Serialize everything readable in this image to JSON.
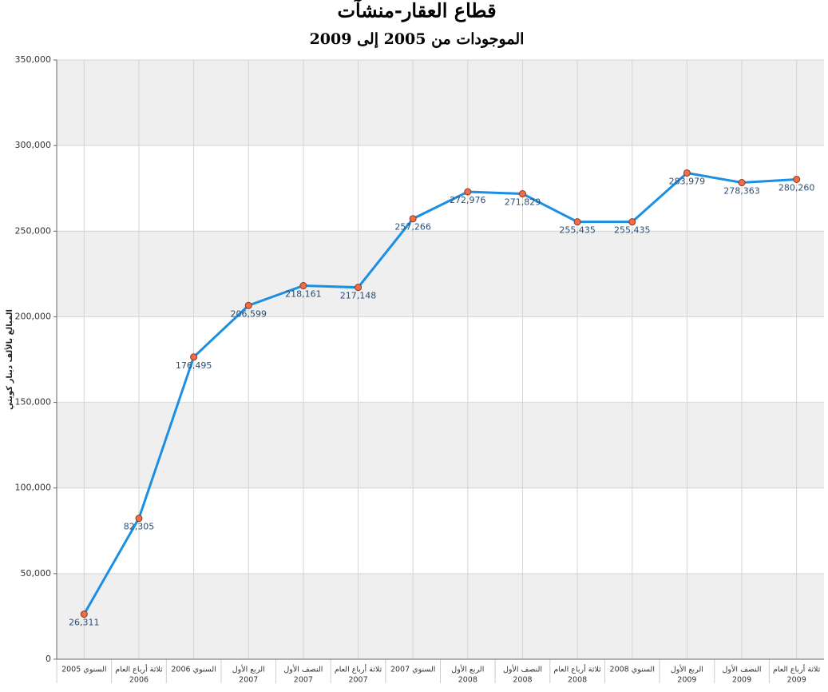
{
  "chart_data": {
    "type": "line",
    "title": "قطاع العقار-منشآت",
    "subtitle": "الموجودات من 2005 إلى 2009",
    "y_label": "المبالغ بالألف دينار كويتي",
    "categories": [
      [
        "السنوي 2005"
      ],
      [
        "ثلاثة أرباع العام",
        "2006"
      ],
      [
        "السنوي 2006"
      ],
      [
        "الربع الأول",
        "2007"
      ],
      [
        "النصف الأول",
        "2007"
      ],
      [
        "ثلاثة أرباع العام",
        "2007"
      ],
      [
        "السنوي 2007"
      ],
      [
        "الربع الأول",
        "2008"
      ],
      [
        "النصف الأول",
        "2008"
      ],
      [
        "ثلاثة أرباع العام",
        "2008"
      ],
      [
        "السنوي 2008"
      ],
      [
        "الربع الأول",
        "2009"
      ],
      [
        "النصف الأول",
        "2009"
      ],
      [
        "ثلاثة أرباع العام",
        "2009"
      ]
    ],
    "values": [
      26311,
      82305,
      176495,
      206599,
      218161,
      217148,
      257266,
      272976,
      271829,
      255435,
      255435,
      283979,
      278363,
      280260
    ],
    "value_labels": [
      "26,311",
      "82,305",
      "176,495",
      "206,599",
      "218,161",
      "217,148",
      "257,266",
      "272,976",
      "271,829",
      "255,435",
      "255,435",
      "283,979",
      "278,363",
      "280,260"
    ],
    "color": "#1a8fe3",
    "marker_color": "#f26d45",
    "ylim": [
      0,
      350000
    ],
    "yticks": [
      0,
      {
        "value": 50000,
        "label": "50,000"
      },
      {
        "value": 100000,
        "label": "100,000"
      },
      {
        "value": 150000,
        "label": "150,000"
      },
      {
        "value": 200000,
        "label": "200,000"
      },
      {
        "value": 250000,
        "label": "250,000"
      },
      {
        "value": 300000,
        "label": "300,000"
      },
      {
        "value": 350000,
        "label": "350,000"
      }
    ],
    "grid": true
  }
}
